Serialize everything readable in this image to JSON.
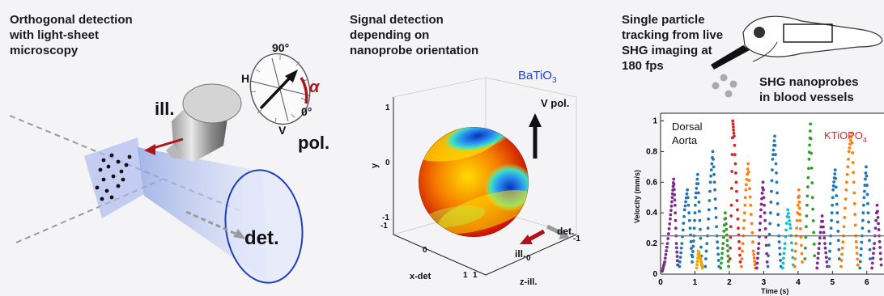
{
  "panel1": {
    "caption": "Orthogonal detection\nwith light-sheet\nmicroscopy",
    "ill_label": "ill.",
    "det_label": "det.",
    "pol_label": "pol.",
    "angle_90": "90°",
    "angle_0": "0°",
    "h_label": "H",
    "v_label": "V",
    "alpha": "α"
  },
  "panel2": {
    "caption": "Signal detection\ndepending on\nnanoprobe orientation",
    "material": "BaTiO",
    "material_sub": "3",
    "vpol_label": "V pol.",
    "det_label": "det.",
    "ill_label": "ill.",
    "axis_y": "y",
    "axis_xdet": "x-det",
    "axis_zill": "z-ill.",
    "y_ticks": [
      "1",
      "0",
      "-1"
    ],
    "x_ticks": [
      "-1",
      "0",
      "1"
    ],
    "z_ticks": [
      "1",
      "0",
      "-1"
    ]
  },
  "panel3": {
    "caption": "Single particle\ntracking from live\nSHG imaging at\n180 fps",
    "nanoprobes_label": "SHG nanoprobes\nin blood vessels",
    "region_label": "Dorsal\nAorta",
    "material": "KTiOPO",
    "material_sub": "4",
    "accent": "#e0262a"
  },
  "chart_data": {
    "type": "scatter",
    "xlabel": "Time (s)",
    "ylabel": "Velocity (mm/s)",
    "xlim": [
      0,
      6.5
    ],
    "ylim": [
      0,
      1.05
    ],
    "x_ticks": [
      0,
      1,
      2,
      3,
      4,
      5,
      6
    ],
    "y_ticks": [
      0,
      0.2,
      0.4,
      0.6,
      0.8,
      1
    ],
    "threshold": 0.25,
    "series": [
      {
        "color": "#7b2d8e",
        "values": [
          [
            0.05,
            0.02
          ],
          [
            0.12,
            0.08
          ],
          [
            0.2,
            0.2
          ],
          [
            0.28,
            0.36
          ],
          [
            0.34,
            0.5
          ],
          [
            0.38,
            0.62
          ],
          [
            0.42,
            0.45
          ],
          [
            0.46,
            0.2
          ],
          [
            0.5,
            0.06
          ]
        ]
      },
      {
        "color": "#1f77b4",
        "values": [
          [
            0.55,
            0.05
          ],
          [
            0.62,
            0.2
          ],
          [
            0.7,
            0.42
          ],
          [
            0.78,
            0.55
          ],
          [
            0.86,
            0.3
          ],
          [
            0.92,
            0.08
          ],
          [
            0.97,
            0.25
          ],
          [
            1.02,
            0.5
          ],
          [
            1.08,
            0.65
          ],
          [
            1.14,
            0.35
          ],
          [
            1.2,
            0.06
          ]
        ]
      },
      {
        "color": "#f0a500",
        "values": [
          [
            1.05,
            0.04
          ],
          [
            1.1,
            0.15
          ],
          [
            1.16,
            0.1
          ],
          [
            1.22,
            0.04
          ]
        ]
      },
      {
        "color": "#1f77b4",
        "values": [
          [
            1.3,
            0.05
          ],
          [
            1.38,
            0.3
          ],
          [
            1.45,
            0.6
          ],
          [
            1.52,
            0.8
          ],
          [
            1.58,
            0.55
          ],
          [
            1.64,
            0.25
          ],
          [
            1.7,
            0.05
          ]
        ]
      },
      {
        "color": "#2ca02c",
        "values": [
          [
            1.75,
            0.04
          ],
          [
            1.82,
            0.2
          ],
          [
            1.88,
            0.4
          ],
          [
            1.94,
            0.22
          ],
          [
            1.98,
            0.05
          ]
        ]
      },
      {
        "color": "#d62728",
        "values": [
          [
            2.02,
            0.1
          ],
          [
            2.06,
            0.45
          ],
          [
            2.1,
            1.0
          ],
          [
            2.14,
            0.9
          ],
          [
            2.2,
            0.6
          ],
          [
            2.26,
            0.3
          ],
          [
            2.32,
            0.08
          ]
        ]
      },
      {
        "color": "#ff7f0e",
        "values": [
          [
            2.35,
            0.05
          ],
          [
            2.42,
            0.3
          ],
          [
            2.48,
            0.55
          ],
          [
            2.55,
            0.72
          ],
          [
            2.62,
            0.45
          ],
          [
            2.7,
            0.15
          ],
          [
            2.76,
            0.04
          ]
        ]
      },
      {
        "color": "#7b2d8e",
        "values": [
          [
            2.8,
            0.04
          ],
          [
            2.86,
            0.2
          ],
          [
            2.92,
            0.42
          ],
          [
            2.98,
            0.6
          ],
          [
            3.04,
            0.35
          ],
          [
            3.1,
            0.08
          ]
        ]
      },
      {
        "color": "#1f77b4",
        "values": [
          [
            3.12,
            0.05
          ],
          [
            3.2,
            0.4
          ],
          [
            3.26,
            0.75
          ],
          [
            3.32,
            0.9
          ],
          [
            3.38,
            0.6
          ],
          [
            3.44,
            0.25
          ],
          [
            3.5,
            0.05
          ]
        ]
      },
      {
        "color": "#17becf",
        "values": [
          [
            3.55,
            0.04
          ],
          [
            3.62,
            0.2
          ],
          [
            3.7,
            0.42
          ],
          [
            3.78,
            0.3
          ],
          [
            3.86,
            0.06
          ]
        ]
      },
      {
        "color": "#ff7f0e",
        "values": [
          [
            3.9,
            0.05
          ],
          [
            3.96,
            0.3
          ],
          [
            4.02,
            0.55
          ],
          [
            4.06,
            0.35
          ],
          [
            4.12,
            0.08
          ]
        ]
      },
      {
        "color": "#2ca02c",
        "values": [
          [
            4.2,
            0.1
          ],
          [
            4.26,
            0.45
          ],
          [
            4.32,
            0.75
          ],
          [
            4.36,
            0.98
          ],
          [
            4.42,
            0.5
          ],
          [
            4.48,
            0.12
          ]
        ]
      },
      {
        "color": "#7b2d8e",
        "values": [
          [
            4.55,
            0.04
          ],
          [
            4.62,
            0.2
          ],
          [
            4.7,
            0.38
          ],
          [
            4.78,
            0.2
          ],
          [
            4.85,
            0.05
          ]
        ]
      },
      {
        "color": "#1f77b4",
        "values": [
          [
            4.9,
            0.05
          ],
          [
            4.96,
            0.3
          ],
          [
            5.02,
            0.55
          ],
          [
            5.08,
            0.68
          ],
          [
            5.14,
            0.4
          ],
          [
            5.2,
            0.1
          ]
        ]
      },
      {
        "color": "#ff7f0e",
        "values": [
          [
            5.25,
            0.05
          ],
          [
            5.32,
            0.25
          ],
          [
            5.4,
            0.55
          ],
          [
            5.48,
            0.8
          ],
          [
            5.56,
            0.92
          ],
          [
            5.62,
            0.6
          ],
          [
            5.68,
            0.25
          ],
          [
            5.74,
            0.06
          ]
        ]
      },
      {
        "color": "#1f77b4",
        "values": [
          [
            5.8,
            0.04
          ],
          [
            5.86,
            0.25
          ],
          [
            5.92,
            0.5
          ],
          [
            5.98,
            0.7
          ],
          [
            6.04,
            0.4
          ],
          [
            6.1,
            0.1
          ]
        ]
      },
      {
        "color": "#7b2d8e",
        "values": [
          [
            6.15,
            0.04
          ],
          [
            6.22,
            0.2
          ],
          [
            6.3,
            0.45
          ],
          [
            6.36,
            0.25
          ],
          [
            6.42,
            0.06
          ]
        ]
      }
    ]
  }
}
